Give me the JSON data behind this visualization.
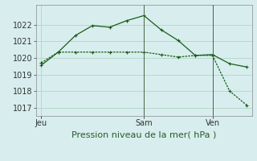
{
  "title": "Pression niveau de la mer( hPa )",
  "background_color": "#d8eeee",
  "grid_color": "#b8d8cc",
  "line_color": "#1a5c1a",
  "ylim": [
    1016.5,
    1023.2
  ],
  "yticks": [
    1017,
    1018,
    1019,
    1020,
    1021,
    1022
  ],
  "line1_x": [
    0,
    1,
    2,
    3,
    4,
    5,
    6,
    7,
    8,
    9,
    10,
    11,
    12
  ],
  "line1_y": [
    1019.55,
    1020.35,
    1021.35,
    1021.95,
    1021.85,
    1022.25,
    1022.55,
    1021.7,
    1021.05,
    1020.15,
    1020.2,
    1019.65,
    1019.45
  ],
  "line2_x": [
    0,
    1,
    2,
    3,
    4,
    5,
    6,
    7,
    8,
    9,
    10,
    11,
    12
  ],
  "line2_y": [
    1019.7,
    1020.35,
    1020.35,
    1020.35,
    1020.35,
    1020.35,
    1020.35,
    1020.2,
    1020.05,
    1020.15,
    1020.15,
    1018.0,
    1017.15
  ],
  "xtick_positions": [
    0,
    6,
    10
  ],
  "xtick_labels": [
    "Jeu",
    "Sam",
    "Ven"
  ],
  "vline_positions": [
    6,
    10
  ],
  "xlabel_fontsize": 8,
  "ylabel_fontsize": 7,
  "tick_fontsize": 7,
  "figwidth": 3.2,
  "figheight": 2.0,
  "dpi": 100
}
